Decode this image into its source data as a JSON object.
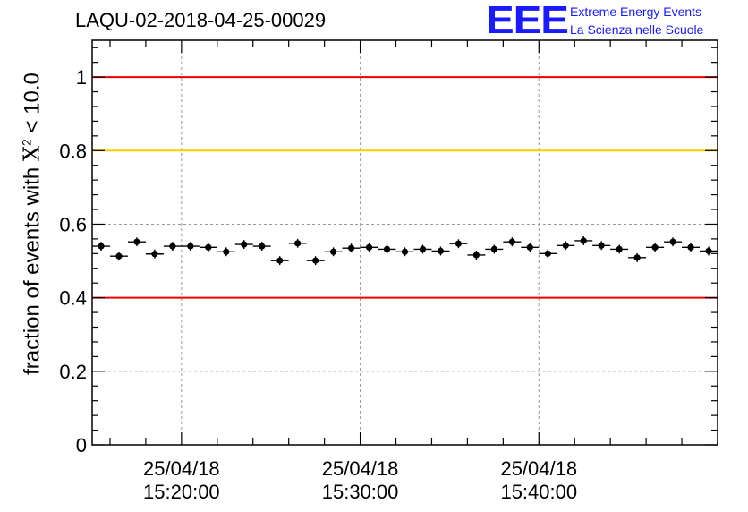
{
  "header": {
    "title": "LAQU-02-2018-04-25-00029"
  },
  "logo": {
    "mark": "EEE",
    "line1": "Extreme Energy Events",
    "line2": "La Scienza nelle Scuole"
  },
  "chart_data": {
    "type": "scatter",
    "title": "LAQU-02-2018-04-25-00029",
    "xlabel": "",
    "ylabel_prefix": "fraction of events with ",
    "ylabel_symbol": "X",
    "ylabel_sup": "2",
    "ylabel_suffix": " < 10.0",
    "x_unit": "minutes after 25/04/18 15:00:00",
    "xlim": [
      12.58,
      47.58
    ],
    "ylim": [
      0,
      1.1
    ],
    "grid": true,
    "yticks": [
      0,
      0.2,
      0.4,
      0.6,
      0.8,
      1
    ],
    "ytick_labels": [
      "0",
      "0.2",
      "0.4",
      "0.6",
      "0.8",
      "1"
    ],
    "xticks": [
      {
        "x": 17.58,
        "date": "25/04/18",
        "time": "15:20:00"
      },
      {
        "x": 27.58,
        "date": "25/04/18",
        "time": "15:30:00"
      },
      {
        "x": 37.58,
        "date": "25/04/18",
        "time": "15:40:00"
      }
    ],
    "x_minor_step": 2,
    "reference_lines": [
      {
        "y": 1.0,
        "color": "#ee0000"
      },
      {
        "y": 0.8,
        "color": "#ffcc00"
      },
      {
        "y": 0.4,
        "color": "#ee0000"
      }
    ],
    "series": [
      {
        "name": "fraction",
        "bin_width": 1,
        "error": 0.012,
        "x": [
          13.08,
          14.08,
          15.08,
          16.08,
          17.08,
          18.08,
          19.08,
          20.08,
          21.08,
          22.08,
          23.08,
          24.08,
          25.08,
          26.08,
          27.08,
          28.08,
          29.08,
          30.08,
          31.08,
          32.08,
          33.08,
          34.08,
          35.08,
          36.08,
          37.08,
          38.08,
          39.08,
          40.08,
          41.08,
          42.08,
          43.08,
          44.08,
          45.08,
          46.08,
          47.08
        ],
        "values": [
          0.54,
          0.513,
          0.552,
          0.519,
          0.54,
          0.54,
          0.537,
          0.525,
          0.545,
          0.54,
          0.501,
          0.548,
          0.501,
          0.525,
          0.535,
          0.537,
          0.532,
          0.525,
          0.532,
          0.527,
          0.547,
          0.516,
          0.532,
          0.552,
          0.537,
          0.52,
          0.542,
          0.555,
          0.542,
          0.532,
          0.509,
          0.537,
          0.552,
          0.537,
          0.527
        ]
      }
    ]
  }
}
